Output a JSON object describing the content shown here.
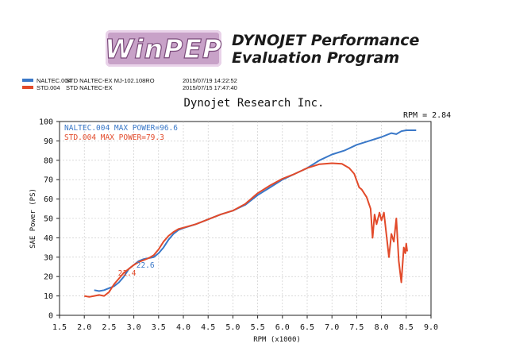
{
  "header": {
    "logo_text": "WinPEP",
    "program_line1": "DYNOJET Performance",
    "program_line2": "Evaluation Program",
    "company": "Dynojet  Research  Inc.",
    "rpm_ratio": "RPM = 2.84"
  },
  "runs": [
    {
      "name": "NALTEC.004",
      "desc": "STD NALTEC-EX MJ-102.108RO",
      "date": "2015/07/19 14:22:52",
      "color": "#3a78c8"
    },
    {
      "name": "STD.004",
      "desc": "STD NALTEC-EX",
      "date": "2015/07/15 17:47:40",
      "color": "#e24a2a"
    }
  ],
  "chart_data": {
    "type": "line",
    "title": "Dynojet  Research  Inc.",
    "xlabel": "RPM (x1000)",
    "ylabel": "SAE Power (PS)",
    "xlim": [
      1.5,
      9.0
    ],
    "ylim": [
      0,
      100
    ],
    "xticks": [
      "1.5",
      "2.0",
      "2.5",
      "3.0",
      "3.5",
      "4.0",
      "4.5",
      "5.0",
      "5.5",
      "6.0",
      "6.5",
      "7.0",
      "7.5",
      "8.0",
      "8.5",
      "9.0"
    ],
    "yticks": [
      "0",
      "10",
      "20",
      "30",
      "40",
      "50",
      "60",
      "70",
      "80",
      "90",
      "100"
    ],
    "legend": [
      {
        "text": "NALTEC.004  MAX POWER=96.6",
        "color": "#3a78c8"
      },
      {
        "text": "STD.004  MAX POWER=79.3",
        "color": "#e24a2a"
      }
    ],
    "annotations": [
      {
        "text": "22.6",
        "x": 3.05,
        "y": 24.5,
        "color": "#3a78c8"
      },
      {
        "text": "21.4",
        "x": 2.68,
        "y": 20.5,
        "color": "#e24a2a"
      }
    ],
    "series": [
      {
        "name": "NALTEC.004",
        "color": "#3a78c8",
        "points": [
          [
            2.2,
            13
          ],
          [
            2.3,
            12.5
          ],
          [
            2.4,
            13
          ],
          [
            2.5,
            14
          ],
          [
            2.6,
            15
          ],
          [
            2.7,
            17
          ],
          [
            2.8,
            20
          ],
          [
            2.9,
            24
          ],
          [
            3.0,
            26
          ],
          [
            3.1,
            28
          ],
          [
            3.2,
            29
          ],
          [
            3.3,
            29.5
          ],
          [
            3.4,
            30
          ],
          [
            3.5,
            32
          ],
          [
            3.6,
            35
          ],
          [
            3.7,
            39
          ],
          [
            3.8,
            42
          ],
          [
            3.9,
            44
          ],
          [
            4.0,
            45
          ],
          [
            4.25,
            47
          ],
          [
            4.5,
            49.5
          ],
          [
            4.75,
            52
          ],
          [
            5.0,
            54
          ],
          [
            5.25,
            57
          ],
          [
            5.5,
            62
          ],
          [
            5.75,
            66
          ],
          [
            6.0,
            70
          ],
          [
            6.25,
            73
          ],
          [
            6.5,
            76
          ],
          [
            6.75,
            80
          ],
          [
            7.0,
            83
          ],
          [
            7.25,
            85
          ],
          [
            7.5,
            88
          ],
          [
            7.75,
            90
          ],
          [
            8.0,
            92
          ],
          [
            8.2,
            94
          ],
          [
            8.3,
            93.5
          ],
          [
            8.4,
            95
          ],
          [
            8.5,
            95.5
          ],
          [
            8.6,
            95.5
          ],
          [
            8.7,
            95.5
          ]
        ]
      },
      {
        "name": "STD.004",
        "color": "#e24a2a",
        "points": [
          [
            2.0,
            10
          ],
          [
            2.1,
            9.5
          ],
          [
            2.2,
            10
          ],
          [
            2.3,
            10.5
          ],
          [
            2.4,
            10
          ],
          [
            2.5,
            12
          ],
          [
            2.6,
            16
          ],
          [
            2.7,
            19
          ],
          [
            2.8,
            22
          ],
          [
            2.9,
            24
          ],
          [
            3.0,
            26
          ],
          [
            3.1,
            27.5
          ],
          [
            3.2,
            28.5
          ],
          [
            3.3,
            29.5
          ],
          [
            3.4,
            31
          ],
          [
            3.5,
            34
          ],
          [
            3.6,
            38
          ],
          [
            3.7,
            41
          ],
          [
            3.8,
            43
          ],
          [
            3.9,
            44.5
          ],
          [
            4.0,
            45.2
          ],
          [
            4.25,
            47
          ],
          [
            4.5,
            49.5
          ],
          [
            4.75,
            52
          ],
          [
            5.0,
            54
          ],
          [
            5.25,
            57.5
          ],
          [
            5.5,
            63
          ],
          [
            5.75,
            67
          ],
          [
            6.0,
            70.5
          ],
          [
            6.25,
            73
          ],
          [
            6.5,
            76
          ],
          [
            6.75,
            78
          ],
          [
            7.0,
            78.5
          ],
          [
            7.2,
            78.2
          ],
          [
            7.35,
            76
          ],
          [
            7.45,
            73
          ],
          [
            7.55,
            66
          ],
          [
            7.6,
            65
          ],
          [
            7.7,
            61
          ],
          [
            7.78,
            55
          ],
          [
            7.82,
            40
          ],
          [
            7.86,
            52
          ],
          [
            7.9,
            47
          ],
          [
            7.96,
            53
          ],
          [
            8.0,
            49
          ],
          [
            8.05,
            53
          ],
          [
            8.15,
            30
          ],
          [
            8.2,
            42
          ],
          [
            8.25,
            38
          ],
          [
            8.3,
            50
          ],
          [
            8.35,
            28
          ],
          [
            8.4,
            17
          ],
          [
            8.45,
            35
          ],
          [
            8.48,
            32
          ],
          [
            8.5,
            37
          ],
          [
            8.52,
            33
          ]
        ]
      }
    ]
  }
}
